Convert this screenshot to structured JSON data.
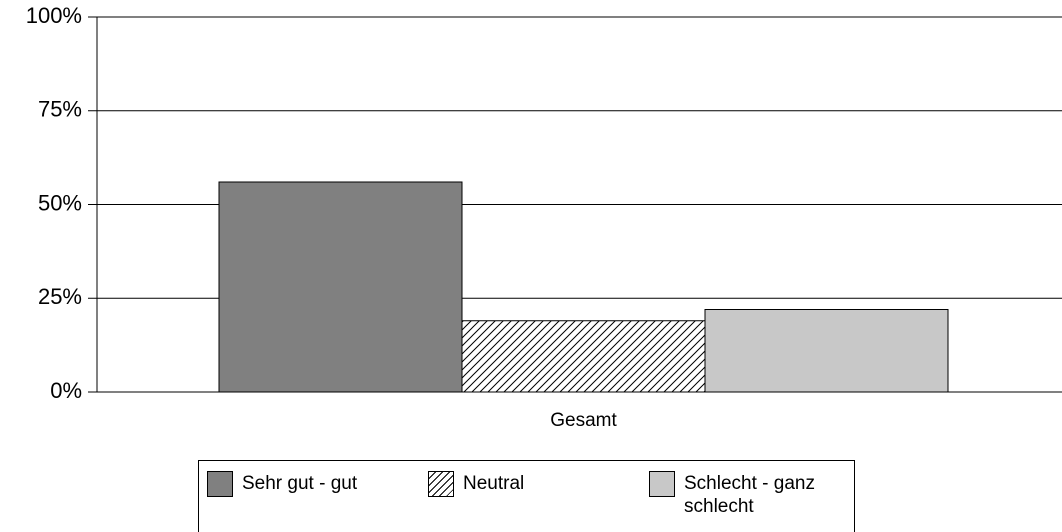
{
  "chart_data": {
    "type": "bar",
    "categories": [
      "Gesamt"
    ],
    "series": [
      {
        "name": "Sehr gut - gut",
        "color": "#808080",
        "values": [
          56
        ]
      },
      {
        "name": "Neutral",
        "color": "#ffffff",
        "pattern": "hatch",
        "values": [
          19
        ]
      },
      {
        "name": "Schlecht - ganz schlecht",
        "color": "#c8c8c8",
        "values": [
          22
        ]
      }
    ],
    "ylim": [
      0,
      100
    ],
    "yticks": [
      {
        "value": 0,
        "label": "0%"
      },
      {
        "value": 25,
        "label": "25%"
      },
      {
        "value": 50,
        "label": "50%"
      },
      {
        "value": 75,
        "label": "75%"
      },
      {
        "value": 100,
        "label": "100%"
      }
    ],
    "grid": true,
    "legend": "bottom"
  }
}
